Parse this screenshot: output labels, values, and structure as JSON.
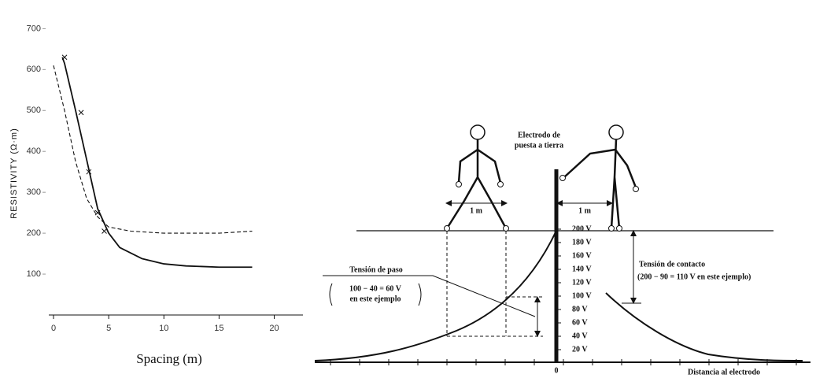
{
  "chart_data": {
    "type": "line",
    "x_label": "Spacing (m)",
    "y_label": "RESISTIVITY (Ω·m)",
    "xlim": [
      0,
      22.6
    ],
    "xticks": [
      0,
      5,
      10,
      15,
      20
    ],
    "ylim": [
      0,
      720
    ],
    "yticks": [
      100,
      200,
      300,
      400,
      500,
      600,
      700
    ],
    "series": [
      {
        "style": "solid",
        "x": [
          0.8,
          1,
          2,
          3,
          4,
          5,
          6,
          8,
          10,
          12,
          15,
          18
        ],
        "values": [
          630,
          615,
          500,
          380,
          260,
          200,
          165,
          138,
          125,
          120,
          117,
          117
        ]
      },
      {
        "style": "dashed",
        "x": [
          0,
          1,
          2,
          3,
          4,
          5,
          7,
          10,
          15,
          18
        ],
        "values": [
          610,
          500,
          375,
          285,
          240,
          215,
          205,
          200,
          200,
          205
        ]
      },
      {
        "style": "marker",
        "x": [
          1,
          2.5,
          3.2,
          4,
          4.6
        ],
        "values": [
          630,
          495,
          350,
          250,
          205
        ]
      }
    ]
  },
  "diagram": {
    "electrode_label": [
      "Electrodo de",
      "puesta a tierra"
    ],
    "distance_left": "1 m",
    "distance_right": "1 m",
    "voltages": [
      "200 V",
      "180 V",
      "160 V",
      "140 V",
      "120 V",
      "100 V",
      "80 V",
      "60 V",
      "40 V",
      "20 V"
    ],
    "step_title": "Tensión de paso",
    "step_note": [
      "100 − 40 = 60 V",
      "en este ejemplo"
    ],
    "touch_title": "Tensión de contacto",
    "touch_note": "(200 − 90 = 110 V en este ejemplo)",
    "origin": "0",
    "axis_label": "Distancia al electrodo"
  }
}
